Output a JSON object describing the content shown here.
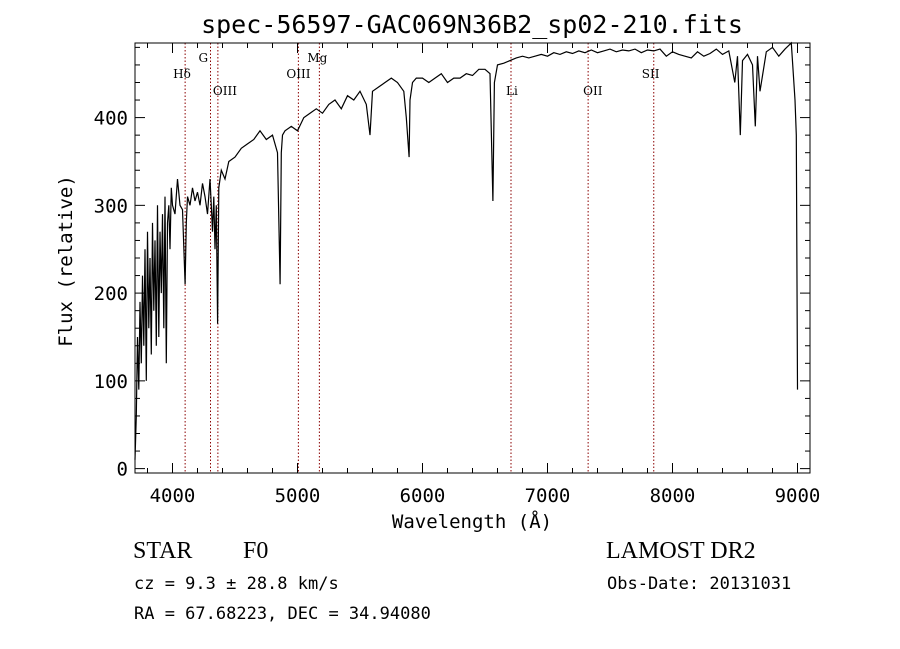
{
  "chart_data": {
    "type": "line",
    "title": "spec-56597-GAC069N36B2_sp02-210.fits",
    "xlabel": "Wavelength (Å)",
    "ylabel": "Flux (relative)",
    "xlim": [
      3700,
      9100
    ],
    "ylim": [
      -5,
      485
    ],
    "xticks": [
      "4000",
      "5000",
      "6000",
      "7000",
      "8000",
      "9000"
    ],
    "yticks": [
      "0",
      "100",
      "200",
      "300",
      "400"
    ],
    "grid": false,
    "line_color": "#000000",
    "marker_color": "#8b0000",
    "series": [
      {
        "x": [
          3700,
          3710,
          3720,
          3730,
          3740,
          3750,
          3760,
          3770,
          3780,
          3790,
          3800,
          3810,
          3820,
          3830,
          3840,
          3850,
          3860,
          3870,
          3880,
          3890,
          3900,
          3910,
          3920,
          3930,
          3940,
          3950,
          3960,
          3970,
          3980,
          3990,
          4000,
          4020,
          4040,
          4060,
          4080,
          4101,
          4110,
          4120,
          4140,
          4160,
          4180,
          4200,
          4220,
          4240,
          4260,
          4280,
          4300,
          4310,
          4320,
          4330,
          4340,
          4350,
          4361,
          4370,
          4390,
          4420,
          4450,
          4500,
          4550,
          4600,
          4650,
          4700,
          4750,
          4800,
          4840,
          4861,
          4870,
          4880,
          4900,
          4950,
          5000,
          5050,
          5100,
          5150,
          5200,
          5250,
          5300,
          5350,
          5400,
          5450,
          5500,
          5550,
          5580,
          5600,
          5650,
          5700,
          5750,
          5800,
          5850,
          5870,
          5893,
          5900,
          5920,
          5950,
          6000,
          6050,
          6100,
          6150,
          6200,
          6250,
          6300,
          6350,
          6400,
          6450,
          6500,
          6540,
          6563,
          6575,
          6600,
          6650,
          6700,
          6750,
          6800,
          6850,
          6900,
          6950,
          7000,
          7050,
          7100,
          7150,
          7200,
          7250,
          7300,
          7350,
          7400,
          7450,
          7500,
          7550,
          7600,
          7650,
          7700,
          7750,
          7800,
          7850,
          7900,
          7950,
          8000,
          8050,
          8100,
          8150,
          8200,
          8250,
          8300,
          8350,
          8400,
          8450,
          8498,
          8520,
          8542,
          8560,
          8600,
          8640,
          8662,
          8680,
          8700,
          8750,
          8800,
          8850,
          8900,
          8950,
          8980,
          8990,
          9000
        ],
        "y": [
          10,
          60,
          150,
          90,
          190,
          120,
          220,
          140,
          250,
          100,
          270,
          160,
          240,
          130,
          280,
          180,
          260,
          140,
          300,
          150,
          270,
          200,
          290,
          160,
          310,
          120,
          280,
          300,
          250,
          320,
          300,
          290,
          330,
          300,
          295,
          210,
          280,
          310,
          300,
          320,
          305,
          315,
          300,
          325,
          310,
          290,
          330,
          300,
          270,
          310,
          250,
          300,
          165,
          320,
          340,
          330,
          350,
          355,
          365,
          370,
          375,
          385,
          375,
          380,
          360,
          210,
          360,
          380,
          385,
          390,
          385,
          400,
          405,
          410,
          405,
          415,
          420,
          410,
          425,
          420,
          430,
          415,
          380,
          430,
          435,
          440,
          445,
          440,
          430,
          400,
          355,
          420,
          440,
          445,
          445,
          440,
          445,
          450,
          440,
          445,
          445,
          450,
          448,
          455,
          455,
          450,
          305,
          440,
          460,
          462,
          465,
          468,
          470,
          468,
          470,
          472,
          470,
          474,
          472,
          475,
          473,
          476,
          474,
          477,
          474,
          476,
          478,
          475,
          477,
          476,
          478,
          474,
          477,
          476,
          478,
          470,
          475,
          472,
          470,
          468,
          475,
          470,
          473,
          478,
          472,
          476,
          440,
          470,
          380,
          465,
          472,
          460,
          390,
          470,
          430,
          475,
          480,
          470,
          478,
          485,
          420,
          380,
          90
        ]
      }
    ],
    "spectral_lines": [
      {
        "name": "Hδ",
        "wavelength": 4101,
        "row": "top"
      },
      {
        "name": "G",
        "wavelength": 4304,
        "row": "higher"
      },
      {
        "name": "OIII",
        "wavelength": 4363,
        "row": "lower"
      },
      {
        "name": "OIII",
        "wavelength": 5007,
        "row": "top"
      },
      {
        "name": "Mg",
        "wavelength": 5175,
        "row": "higher"
      },
      {
        "name": "Li",
        "wavelength": 6708,
        "row": "lower"
      },
      {
        "name": "OII",
        "wavelength": 7325,
        "row": "lower"
      },
      {
        "name": "SII",
        "wavelength": 7850,
        "row": "top"
      }
    ]
  },
  "info": {
    "object_type": "STAR",
    "subclass": "F0",
    "survey": "LAMOST DR2",
    "redshift": "cz =  9.3 ± 28.8 km/s",
    "obs_date": "Obs-Date: 20131031",
    "coords": "RA =  67.68223, DEC =  34.94080"
  }
}
